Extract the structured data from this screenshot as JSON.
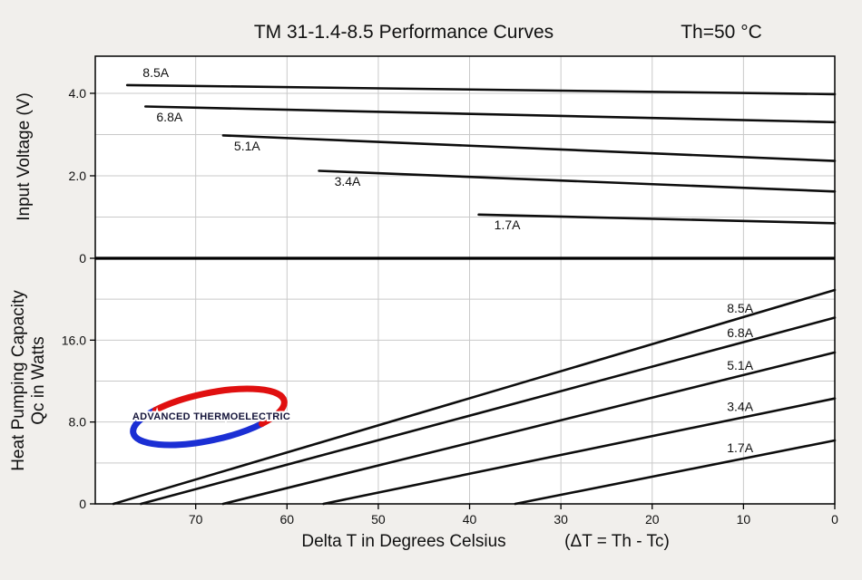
{
  "title": {
    "main": "TM 31-1.4-8.5 Performance Curves",
    "condition": "Th=50 °C"
  },
  "axis_titles": {
    "x_main": "Delta T in Degrees Celsius",
    "x_formula": "(ΔT = Th - Tc)",
    "top_y": "Input Voltage (V)",
    "bottom_y_line1": "Heat Pumping Capacity",
    "bottom_y_line2": "Qc in Watts"
  },
  "logo": {
    "text": "ADVANCED THERMOELECTRIC"
  },
  "colors": {
    "curve": "#0d0d0d",
    "grid": "#c9c9c9",
    "frame": "#000000",
    "logo_red": "#e01010",
    "logo_blue": "#1b2fd4"
  },
  "chart_data": {
    "type": "line",
    "title": "TM 31-1.4-8.5 Performance Curves",
    "condition": "Th=50 °C",
    "x_axis": {
      "label": "Delta T in Degrees Celsius (ΔT = Th - Tc)",
      "max": 81,
      "reversed": true,
      "ticks": [
        {
          "value": 70,
          "label": "70"
        },
        {
          "value": 60,
          "label": "60"
        },
        {
          "value": 50,
          "label": "50"
        },
        {
          "value": 40,
          "label": "40"
        },
        {
          "value": 30,
          "label": "30"
        },
        {
          "value": 20,
          "label": "20"
        },
        {
          "value": 10,
          "label": "10"
        },
        {
          "value": 0,
          "label": "0"
        }
      ]
    },
    "panels": [
      {
        "id": "voltage",
        "ylabel": "Input Voltage (V)",
        "ylim": [
          0,
          4.9
        ],
        "yticks": [
          {
            "value": 4,
            "label": "4.0"
          },
          {
            "value": 2,
            "label": "2.0"
          },
          {
            "value": 0,
            "label": "0"
          }
        ],
        "gridlines": [
          1,
          2,
          3,
          4
        ],
        "series": [
          {
            "name": "8.5A",
            "points": [
              [
                77.5,
                4.2
              ],
              [
                0,
                3.98
              ]
            ],
            "label": {
              "dt": 76,
              "dy": -9
            }
          },
          {
            "name": "6.8A",
            "points": [
              [
                75.5,
                3.68
              ],
              [
                0,
                3.3
              ]
            ],
            "label": {
              "dt": 74.5,
              "dy": 16
            }
          },
          {
            "name": "5.1A",
            "points": [
              [
                67.0,
                2.98
              ],
              [
                0,
                2.36
              ]
            ],
            "label": {
              "dt": 66,
              "dy": 16
            }
          },
          {
            "name": "3.4A",
            "points": [
              [
                56.5,
                2.12
              ],
              [
                0,
                1.62
              ]
            ],
            "label": {
              "dt": 55,
              "dy": 16
            }
          },
          {
            "name": "1.7A",
            "points": [
              [
                39.0,
                1.06
              ],
              [
                0,
                0.85
              ]
            ],
            "label": {
              "dt": 37.5,
              "dy": 16
            }
          }
        ]
      },
      {
        "id": "capacity",
        "ylabel": "Heat Pumping Capacity Qc in Watts",
        "ylim": [
          0,
          24
        ],
        "yticks": [
          {
            "value": 16,
            "label": "16.0"
          },
          {
            "value": 8,
            "label": "8.0"
          },
          {
            "value": 0,
            "label": "0"
          }
        ],
        "gridlines": [
          4,
          8,
          12,
          16,
          20
        ],
        "series": [
          {
            "name": "8.5A",
            "points": [
              [
                79,
                0
              ],
              [
                0,
                20.9
              ]
            ],
            "label": {
              "dt": 12,
              "dy": -11
            }
          },
          {
            "name": "6.8A",
            "points": [
              [
                76,
                0
              ],
              [
                0,
                18.2
              ]
            ],
            "label": {
              "dt": 12,
              "dy": -11
            }
          },
          {
            "name": "5.1A",
            "points": [
              [
                67,
                0
              ],
              [
                0,
                14.8
              ]
            ],
            "label": {
              "dt": 12,
              "dy": -11
            }
          },
          {
            "name": "3.4A",
            "points": [
              [
                56,
                0
              ],
              [
                0,
                10.3
              ]
            ],
            "label": {
              "dt": 12,
              "dy": -11
            }
          },
          {
            "name": "1.7A",
            "points": [
              [
                35,
                0
              ],
              [
                0,
                6.2
              ]
            ],
            "label": {
              "dt": 12,
              "dy": -11
            }
          }
        ]
      }
    ]
  }
}
